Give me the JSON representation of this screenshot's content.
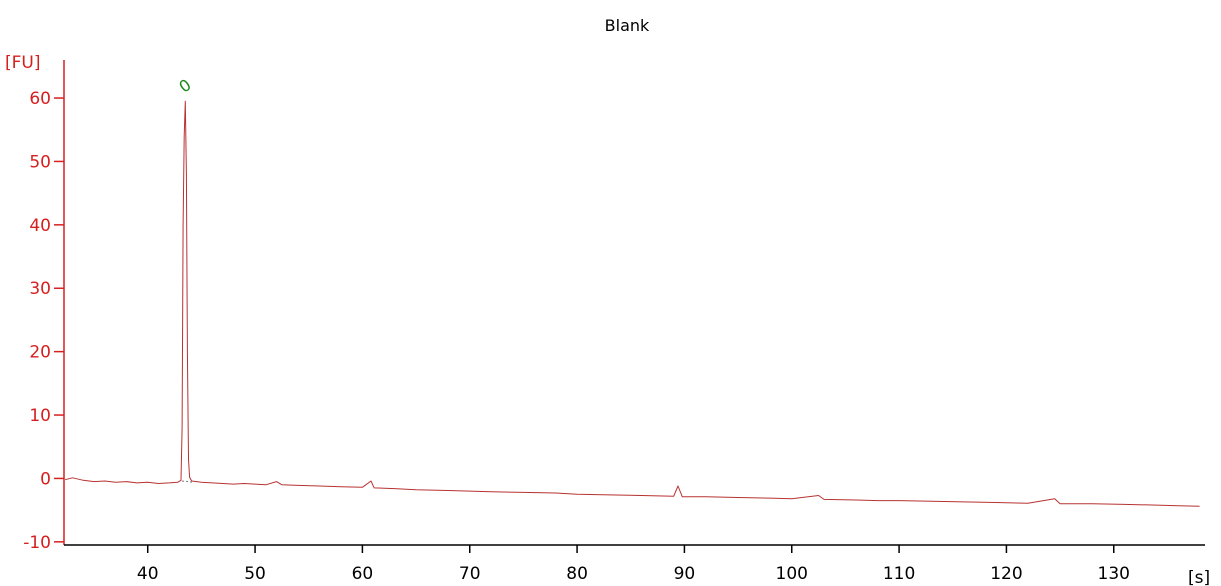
{
  "chart_data": {
    "type": "line",
    "title": "Blank",
    "x_unit": "[s]",
    "y_unit": "[FU]",
    "xlim": [
      32.2,
      138.5
    ],
    "ylim": [
      -10.5,
      66
    ],
    "x_ticks": [
      40,
      50,
      60,
      70,
      80,
      90,
      100,
      110,
      120,
      130
    ],
    "y_ticks": [
      -10,
      0,
      10,
      20,
      30,
      40,
      50,
      60
    ],
    "grid": false,
    "colors": {
      "trace": "#b83232",
      "y_axis": "#d62020",
      "x_axis": "#000000",
      "peak_label": "#1a8a1a"
    },
    "peak": {
      "label": "0",
      "x": 43.5,
      "y": 59.5
    },
    "series": [
      {
        "values": [
          [
            32.3,
            -0.2
          ],
          [
            33,
            0.1
          ],
          [
            34,
            -0.3
          ],
          [
            35,
            -0.5
          ],
          [
            36,
            -0.4
          ],
          [
            37,
            -0.6
          ],
          [
            38,
            -0.5
          ],
          [
            39,
            -0.7
          ],
          [
            40,
            -0.6
          ],
          [
            41,
            -0.8
          ],
          [
            42,
            -0.7
          ],
          [
            42.8,
            -0.6
          ],
          [
            43.1,
            -0.3
          ],
          [
            43.2,
            8
          ],
          [
            43.3,
            40
          ],
          [
            43.4,
            54
          ],
          [
            43.5,
            59.5
          ],
          [
            43.6,
            48
          ],
          [
            43.7,
            20
          ],
          [
            43.8,
            3
          ],
          [
            43.9,
            0.2
          ],
          [
            44.1,
            -0.4
          ],
          [
            45,
            -0.6
          ],
          [
            46,
            -0.7
          ],
          [
            47,
            -0.8
          ],
          [
            48,
            -0.9
          ],
          [
            49,
            -0.8
          ],
          [
            50,
            -0.9
          ],
          [
            51,
            -1.0
          ],
          [
            52,
            -0.5
          ],
          [
            52.5,
            -1.0
          ],
          [
            54,
            -1.1
          ],
          [
            56,
            -1.2
          ],
          [
            58,
            -1.3
          ],
          [
            60,
            -1.4
          ],
          [
            60.8,
            -0.4
          ],
          [
            61.1,
            -1.5
          ],
          [
            63,
            -1.6
          ],
          [
            65,
            -1.8
          ],
          [
            68,
            -1.9
          ],
          [
            70,
            -2.0
          ],
          [
            72,
            -2.1
          ],
          [
            75,
            -2.2
          ],
          [
            78,
            -2.3
          ],
          [
            80,
            -2.5
          ],
          [
            83,
            -2.6
          ],
          [
            86,
            -2.7
          ],
          [
            89,
            -2.8
          ],
          [
            89.4,
            -1.2
          ],
          [
            89.8,
            -2.9
          ],
          [
            92,
            -2.9
          ],
          [
            95,
            -3.0
          ],
          [
            98,
            -3.1
          ],
          [
            100,
            -3.2
          ],
          [
            102.5,
            -2.7
          ],
          [
            103,
            -3.3
          ],
          [
            106,
            -3.4
          ],
          [
            108,
            -3.5
          ],
          [
            110,
            -3.5
          ],
          [
            113,
            -3.6
          ],
          [
            116,
            -3.7
          ],
          [
            119,
            -3.8
          ],
          [
            122,
            -3.9
          ],
          [
            124.5,
            -3.2
          ],
          [
            125,
            -4.0
          ],
          [
            128,
            -4.0
          ],
          [
            131,
            -4.1
          ],
          [
            134,
            -4.2
          ],
          [
            136,
            -4.3
          ],
          [
            138,
            -4.4
          ]
        ]
      }
    ]
  }
}
